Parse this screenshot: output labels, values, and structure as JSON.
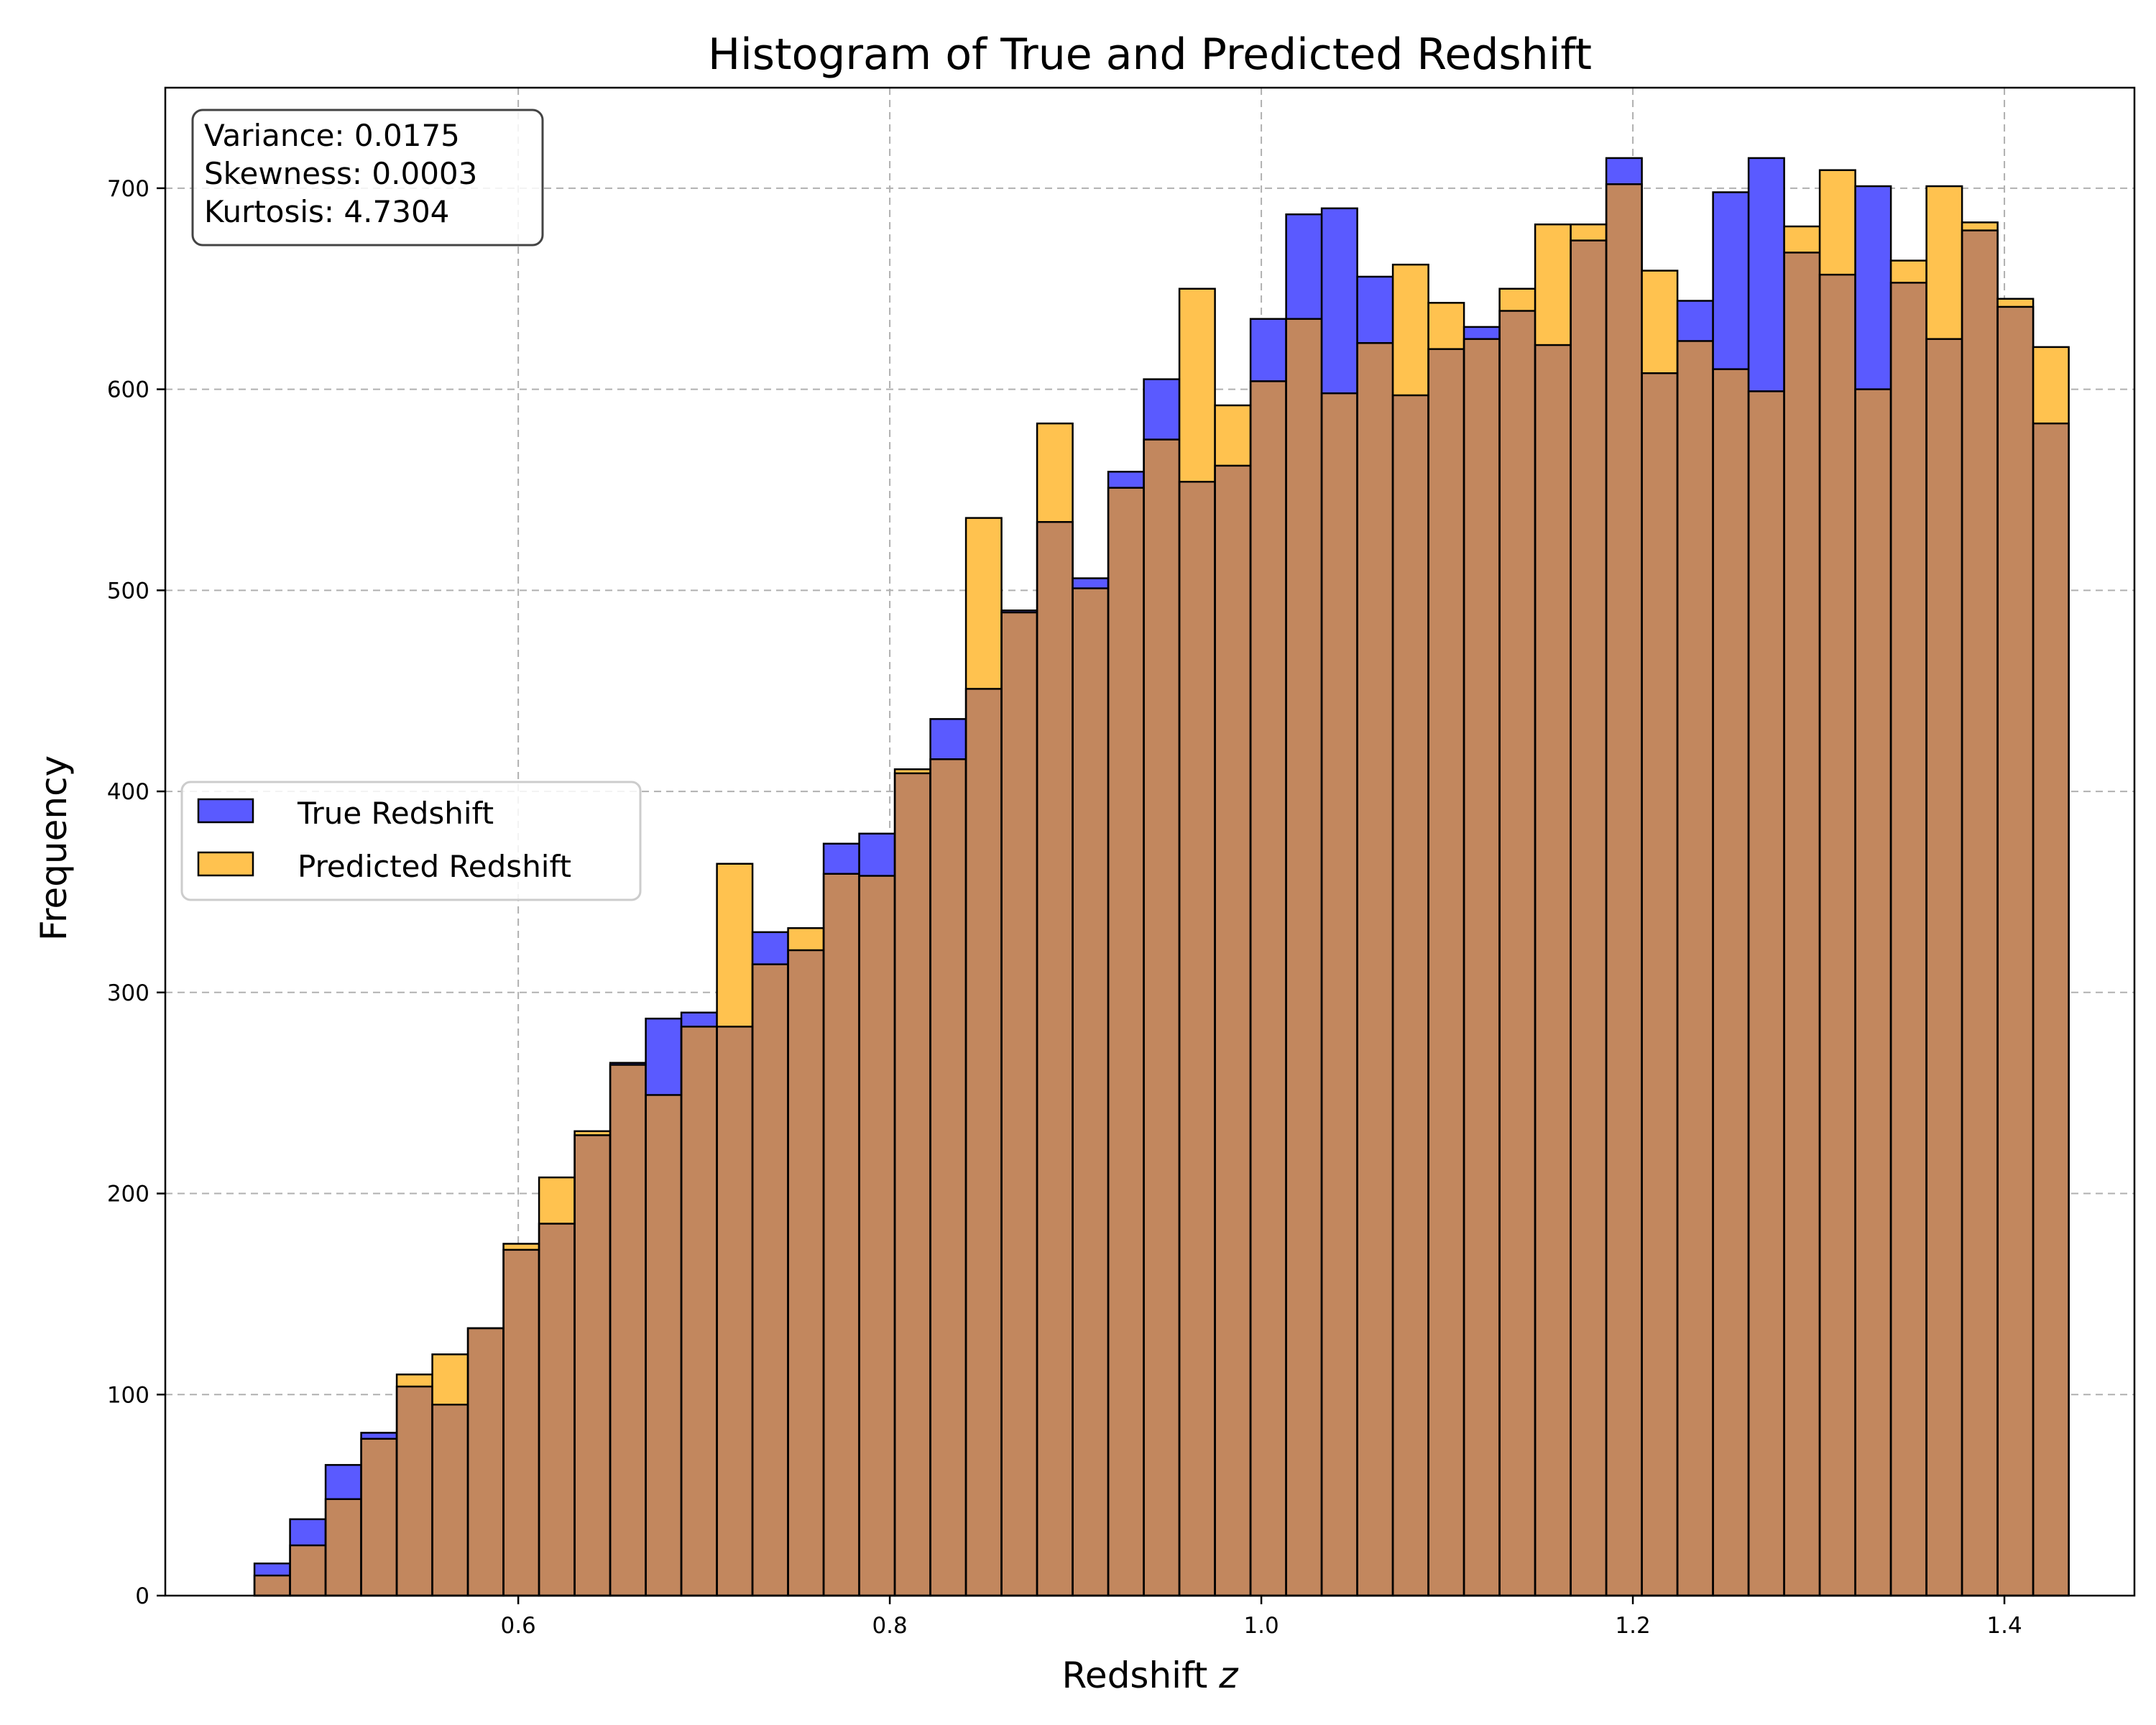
{
  "chart_data": {
    "type": "bar",
    "title": "Histogram of True and Predicted Redshift",
    "xlabel": "Redshift z",
    "ylabel": "Frequency",
    "xlim": [
      0.41,
      1.47
    ],
    "ylim": [
      0,
      750
    ],
    "grid": true,
    "legend_position": "center-left",
    "x_ticks": [
      "0.6",
      "0.8",
      "1.0",
      "1.2",
      "1.4"
    ],
    "y_ticks": [
      "0",
      "100",
      "200",
      "300",
      "400",
      "500",
      "600",
      "700"
    ],
    "bin_start": 0.458,
    "bin_width": 0.01915,
    "series": [
      {
        "name": "True Redshift",
        "color": "#5a5aff",
        "values": [
          16,
          38,
          65,
          81,
          104,
          95,
          133,
          172,
          185,
          229,
          265,
          287,
          290,
          283,
          330,
          321,
          374,
          379,
          409,
          436,
          451,
          490,
          534,
          506,
          559,
          605,
          554,
          562,
          635,
          687,
          690,
          656,
          597,
          620,
          631,
          639,
          622,
          674,
          715,
          608,
          644,
          698,
          715,
          668,
          657,
          701,
          653,
          625,
          679,
          641,
          583
        ]
      },
      {
        "name": "Predicted Redshift",
        "color": "#ffc24f",
        "values": [
          10,
          25,
          48,
          78,
          110,
          120,
          133,
          175,
          208,
          231,
          264,
          249,
          283,
          364,
          314,
          332,
          359,
          358,
          411,
          416,
          536,
          489,
          583,
          501,
          551,
          575,
          650,
          592,
          604,
          635,
          598,
          623,
          662,
          643,
          625,
          650,
          682,
          682,
          702,
          659,
          624,
          610,
          599,
          681,
          709,
          600,
          664,
          701,
          683,
          645,
          621
        ]
      }
    ],
    "overlap_color": "#c2875e",
    "annotation_lines": [
      "Variance: 0.0175",
      "Skewness: 0.0003",
      "Kurtosis: 4.7304"
    ]
  }
}
